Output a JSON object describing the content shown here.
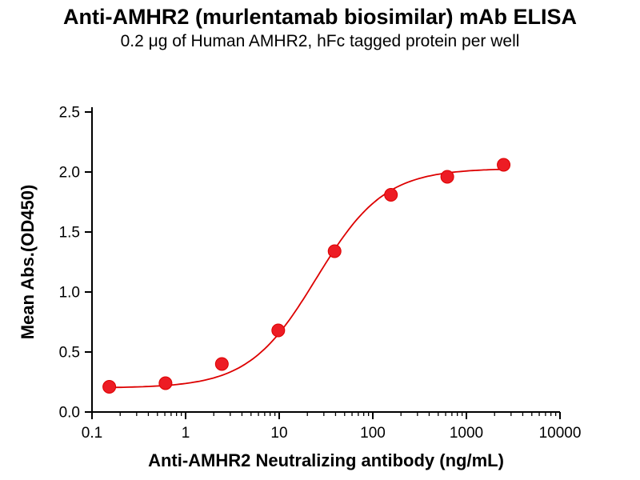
{
  "header": {
    "title": "Anti-AMHR2 (murlentamab biosimilar) mAb ELISA",
    "subtitle": "0.2 μg of Human AMHR2, hFc tagged protein per well"
  },
  "chart_data": {
    "type": "scatter",
    "title": "Anti-AMHR2 (murlentamab biosimilar) mAb ELISA",
    "subtitle": "0.2 μg of Human AMHR2, hFc tagged protein per well",
    "xlabel": "Anti-AMHR2 Neutralizing antibody (ng/mL)",
    "ylabel": "Mean Abs.(OD450)",
    "x_scale": "log",
    "xlim": [
      0.1,
      10000
    ],
    "ylim": [
      0,
      2.5
    ],
    "x_ticks": [
      0.1,
      1,
      10,
      100,
      1000,
      10000
    ],
    "x_tick_labels": [
      "0.1",
      "1",
      "10",
      "100",
      "1000",
      "10000"
    ],
    "y_ticks": [
      0,
      0.5,
      1,
      1.5,
      2,
      2.5
    ],
    "y_tick_labels": [
      "0.0",
      "0.5",
      "1.0",
      "1.5",
      "2.0",
      "2.5"
    ],
    "grid": false,
    "legend": "none",
    "series_name": "Anti-AMHR2 neutralizing antibody",
    "x": [
      0.153,
      0.61,
      2.44,
      9.77,
      39.06,
      156.25,
      625,
      2500
    ],
    "y": [
      0.21,
      0.24,
      0.4,
      0.68,
      1.34,
      1.81,
      1.96,
      2.06
    ],
    "marker_color": "#ED1C24",
    "curve_color": "#DD0000",
    "fit": {
      "model": "4PL",
      "bottom": 0.2,
      "top": 2.03,
      "ec50": 25,
      "hill": 1.2
    }
  }
}
